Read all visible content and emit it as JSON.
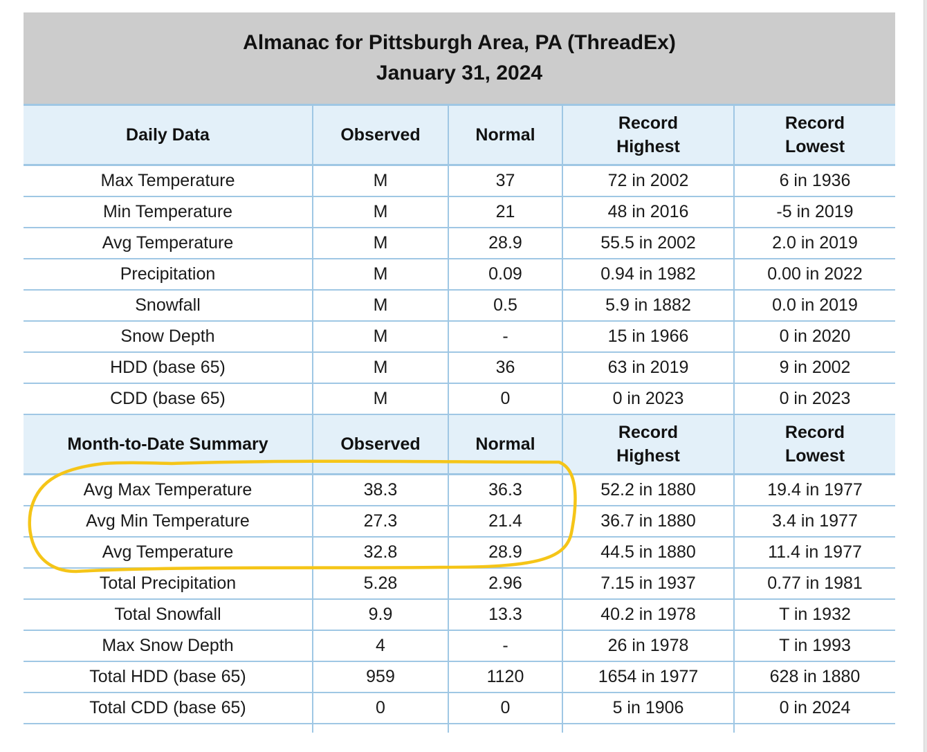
{
  "title": {
    "line1": "Almanac for Pittsburgh Area, PA (ThreadEx)",
    "line2": "January 31, 2024"
  },
  "daily": {
    "headers": [
      "Daily Data",
      "Observed",
      "Normal",
      "Record Highest",
      "Record Lowest"
    ],
    "rows": [
      [
        "Max Temperature",
        "M",
        "37",
        "72 in 2002",
        "6 in 1936"
      ],
      [
        "Min Temperature",
        "M",
        "21",
        "48 in 2016",
        "-5 in 2019"
      ],
      [
        "Avg Temperature",
        "M",
        "28.9",
        "55.5 in 2002",
        "2.0 in 2019"
      ],
      [
        "Precipitation",
        "M",
        "0.09",
        "0.94 in 1982",
        "0.00 in 2022"
      ],
      [
        "Snowfall",
        "M",
        "0.5",
        "5.9 in 1882",
        "0.0 in 2019"
      ],
      [
        "Snow Depth",
        "M",
        "-",
        "15 in 1966",
        "0 in 2020"
      ],
      [
        "HDD (base 65)",
        "M",
        "36",
        "63 in 2019",
        "9 in 2002"
      ],
      [
        "CDD (base 65)",
        "M",
        "0",
        "0 in 2023",
        "0 in 2023"
      ]
    ]
  },
  "mtd": {
    "headers": [
      "Month-to-Date Summary",
      "Observed",
      "Normal",
      "Record Highest",
      "Record Lowest"
    ],
    "rows": [
      [
        "Avg Max Temperature",
        "38.3",
        "36.3",
        "52.2 in 1880",
        "19.4 in 1977"
      ],
      [
        "Avg Min Temperature",
        "27.3",
        "21.4",
        "36.7 in 1880",
        "3.4 in 1977"
      ],
      [
        "Avg Temperature",
        "32.8",
        "28.9",
        "44.5 in 1880",
        "11.4 in 1977"
      ],
      [
        "Total Precipitation",
        "5.28",
        "2.96",
        "7.15 in 1937",
        "0.77 in 1981"
      ],
      [
        "Total Snowfall",
        "9.9",
        "13.3",
        "40.2 in 1978",
        "T in 1932"
      ],
      [
        "Max Snow Depth",
        "4",
        "-",
        "26 in 1978",
        "T in 1993"
      ],
      [
        "Total HDD (base 65)",
        "959",
        "1120",
        "1654 in 1977",
        "628 in 1880"
      ],
      [
        "Total CDD (base 65)",
        "0",
        "0",
        "5 in 1906",
        "0 in 2024"
      ]
    ]
  },
  "colors": {
    "title_bg": "#cccccc",
    "header_bg": "#e3f0f9",
    "grid": "#9fc7e4",
    "highlight": "#f5c518"
  }
}
